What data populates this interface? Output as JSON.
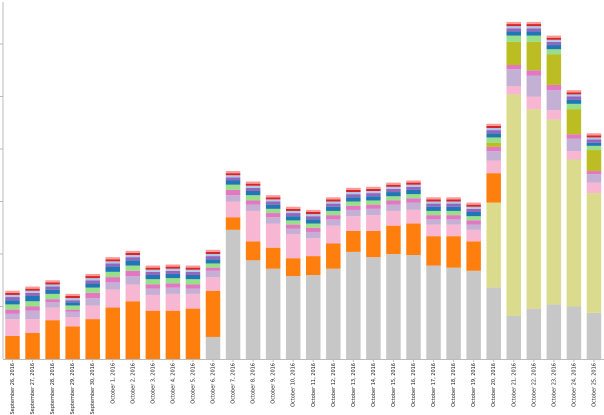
{
  "chart_data": {
    "type": "bar",
    "stacked": true,
    "title": "",
    "xlabel": "",
    "ylabel": "",
    "ylim": [
      0,
      340
    ],
    "grid": false,
    "legend": "none",
    "categories": [
      "September 26, 2016",
      "September 27, 2016",
      "September 28, 2016",
      "September 29, 2016",
      "September 30, 2016",
      "October 1, 2016",
      "October 2, 2016",
      "October 3, 2016",
      "October 4, 2016",
      "October 5, 2016",
      "October 6, 2016",
      "October 7, 2016",
      "October 8, 2016",
      "October 9, 2016",
      "October 10, 2016",
      "October 11, 2016",
      "October 12, 2016",
      "October 13, 2016",
      "October 14, 2016",
      "October 15, 2016",
      "October 16, 2016",
      "October 17, 2016",
      "October 18, 2016",
      "October 19, 2016",
      "October 20, 2016",
      "October 21, 2016",
      "October 22, 2016",
      "October 23, 2016",
      "October 24, 2016",
      "October 25, 2016"
    ],
    "series": [
      {
        "color": "#c7c7c7",
        "values": [
          0,
          0,
          0,
          0,
          0,
          0,
          0,
          0,
          0,
          0,
          21,
          123,
          94,
          86,
          79,
          80,
          86,
          102,
          97,
          100,
          99,
          89,
          87,
          84,
          68,
          41,
          48,
          52,
          50,
          44
        ]
      },
      {
        "color": "#dbdb8d",
        "values": [
          0,
          0,
          0,
          0,
          0,
          0,
          0,
          0,
          0,
          0,
          0,
          0,
          0,
          0,
          0,
          0,
          0,
          0,
          0,
          0,
          0,
          0,
          0,
          0,
          81,
          211,
          190,
          176,
          140,
          114
        ]
      },
      {
        "color": "#ff7f0e",
        "values": [
          22,
          25,
          37,
          31,
          38,
          49,
          55,
          46,
          46,
          48,
          44,
          12,
          18,
          20,
          17,
          18,
          24,
          20,
          25,
          27,
          30,
          28,
          30,
          28,
          28,
          0,
          0,
          0,
          0,
          0
        ]
      },
      {
        "color": "#f7b6d2",
        "values": [
          16,
          13,
          12,
          9,
          13,
          17,
          16,
          15,
          16,
          14,
          13,
          15,
          29,
          23,
          23,
          17,
          17,
          14,
          15,
          14,
          13,
          11,
          11,
          11,
          12,
          8,
          12,
          9,
          8,
          10
        ]
      },
      {
        "color": "#c5b0d5",
        "values": [
          5,
          8,
          5,
          5,
          7,
          7,
          8,
          6,
          6,
          5,
          6,
          6,
          6,
          6,
          5,
          6,
          6,
          6,
          6,
          6,
          7,
          5,
          5,
          5,
          9,
          16,
          20,
          19,
          12,
          8
        ]
      },
      {
        "color": "#e377c2",
        "values": [
          4,
          4,
          3,
          2,
          5,
          5,
          5,
          4,
          4,
          4,
          3,
          5,
          4,
          4,
          4,
          4,
          4,
          4,
          4,
          4,
          4,
          4,
          4,
          4,
          4,
          4,
          5,
          5,
          4,
          3
        ]
      },
      {
        "color": "#bcbd22",
        "values": [
          0,
          0,
          0,
          0,
          0,
          0,
          0,
          0,
          0,
          0,
          0,
          0,
          0,
          0,
          0,
          0,
          0,
          0,
          0,
          0,
          0,
          0,
          0,
          0,
          4,
          22,
          27,
          29,
          24,
          20
        ]
      },
      {
        "color": "#98df8a",
        "values": [
          5,
          5,
          5,
          4,
          5,
          5,
          5,
          5,
          5,
          5,
          4,
          5,
          5,
          4,
          4,
          4,
          4,
          4,
          4,
          4,
          4,
          4,
          4,
          4,
          5,
          6,
          6,
          5,
          5,
          4
        ]
      },
      {
        "color": "#1f77b4",
        "values": [
          4,
          5,
          4,
          3,
          4,
          5,
          5,
          4,
          4,
          4,
          4,
          4,
          4,
          4,
          4,
          4,
          4,
          4,
          4,
          4,
          4,
          4,
          4,
          4,
          4,
          4,
          4,
          4,
          4,
          3
        ]
      },
      {
        "color": "#9467bd",
        "values": [
          3,
          3,
          3,
          2,
          3,
          3,
          3,
          3,
          3,
          3,
          3,
          3,
          3,
          3,
          3,
          3,
          3,
          3,
          3,
          3,
          3,
          3,
          3,
          3,
          3,
          3,
          3,
          3,
          3,
          3
        ]
      },
      {
        "color": "#aec7e8",
        "values": [
          2,
          2,
          2,
          2,
          2,
          2,
          2,
          2,
          2,
          2,
          2,
          2,
          2,
          2,
          2,
          2,
          2,
          2,
          2,
          2,
          2,
          2,
          2,
          2,
          2,
          2,
          2,
          2,
          2,
          2
        ]
      },
      {
        "color": "#d62728",
        "values": [
          2,
          2,
          2,
          2,
          2,
          2,
          2,
          2,
          2,
          2,
          2,
          2,
          2,
          2,
          2,
          2,
          2,
          2,
          2,
          2,
          2,
          2,
          2,
          2,
          2,
          2,
          2,
          2,
          2,
          2
        ]
      },
      {
        "color": "#ff9896",
        "values": [
          2,
          2,
          2,
          2,
          2,
          2,
          2,
          2,
          2,
          2,
          2,
          2,
          2,
          2,
          2,
          2,
          2,
          2,
          2,
          2,
          2,
          2,
          2,
          2,
          2,
          2,
          2,
          2,
          2,
          2
        ]
      }
    ]
  }
}
